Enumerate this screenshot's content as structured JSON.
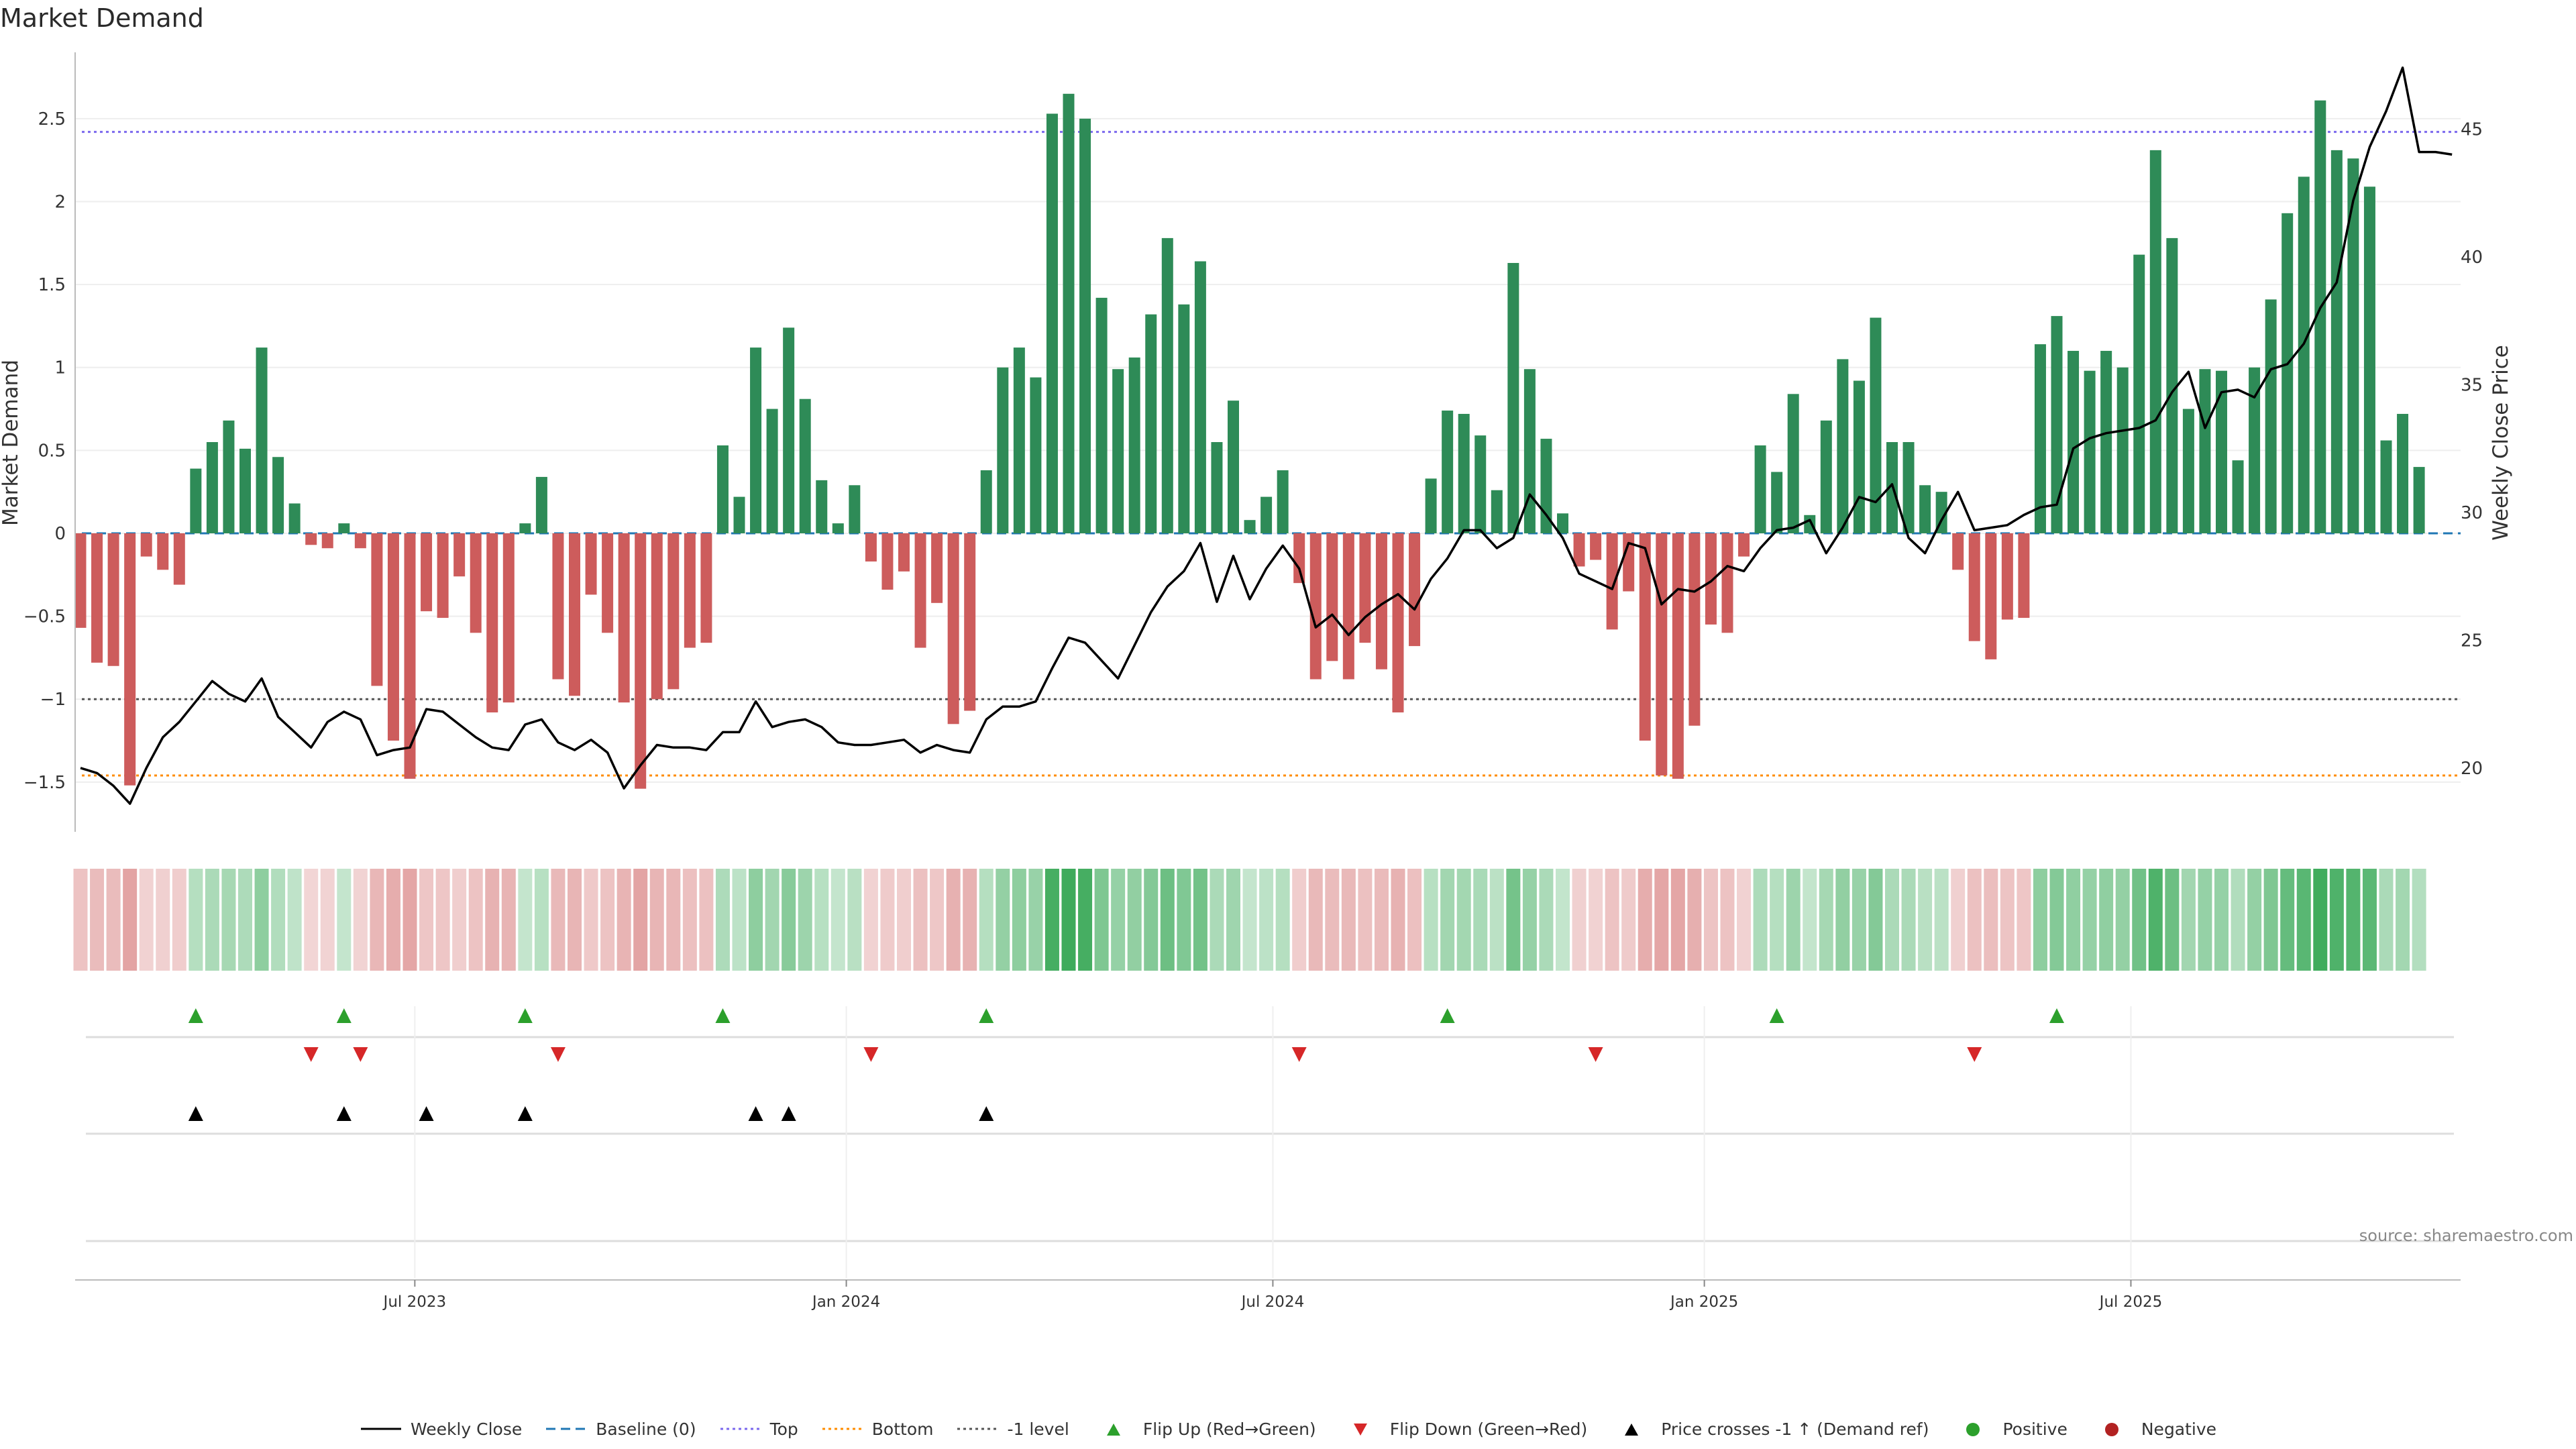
{
  "chart_data": {
    "type": "bar",
    "title": "Market Demand",
    "ylabel": "Market Demand",
    "y2label": "Weekly Close Price",
    "ylim": [
      -1.8,
      2.9
    ],
    "y2lim": [
      17.5,
      48
    ],
    "yticks": [
      "2.5",
      "2",
      "1.5",
      "1",
      "0.5",
      "0",
      "−0.5",
      "−1",
      "−1.5"
    ],
    "ytick_values": [
      2.5,
      2,
      1.5,
      1,
      0.5,
      0,
      -0.5,
      -1,
      -1.5
    ],
    "y2ticks": [
      "45",
      "40",
      "35",
      "30",
      "25",
      "20"
    ],
    "y2tick_values": [
      45,
      40,
      35,
      30,
      25,
      20
    ],
    "reference_lines": {
      "top": 2.42,
      "bottom": -1.46,
      "minus_one": -1.0,
      "baseline": 0
    },
    "xtick_labels": [
      "Jul 2023",
      "Jan 2024",
      "Jul 2024",
      "Jan 2025",
      "Jul 2025"
    ],
    "xtick_index": [
      20.3,
      46.5,
      72.4,
      98.6,
      124.5
    ],
    "demand": [
      -0.57,
      -0.78,
      -0.8,
      -1.52,
      -0.14,
      -0.22,
      -0.31,
      0.39,
      0.55,
      0.68,
      0.51,
      1.12,
      0.46,
      0.18,
      -0.07,
      -0.09,
      0.06,
      -0.09,
      -0.92,
      -1.25,
      -1.48,
      -0.47,
      -0.51,
      -0.26,
      -0.6,
      -1.08,
      -1.02,
      0.06,
      0.34,
      -0.88,
      -0.98,
      -0.37,
      -0.6,
      -1.02,
      -1.54,
      -1.0,
      -0.94,
      -0.69,
      -0.66,
      0.53,
      0.22,
      1.12,
      0.75,
      1.24,
      0.81,
      0.32,
      0.06,
      0.29,
      -0.17,
      -0.34,
      -0.23,
      -0.69,
      -0.42,
      -1.15,
      -1.07,
      0.38,
      1.0,
      1.12,
      0.94,
      2.53,
      2.65,
      2.5,
      1.42,
      0.99,
      1.06,
      1.32,
      1.78,
      1.38,
      1.64,
      0.55,
      0.8,
      0.08,
      0.22,
      0.38,
      -0.3,
      -0.88,
      -0.77,
      -0.88,
      -0.66,
      -0.82,
      -1.08,
      -0.68,
      0.33,
      0.74,
      0.72,
      0.59,
      0.26,
      1.63,
      0.99,
      0.57,
      0.12,
      -0.2,
      -0.16,
      -0.58,
      -0.35,
      -1.25,
      -1.46,
      -1.48,
      -1.16,
      -0.55,
      -0.6,
      -0.14,
      0.53,
      0.37,
      0.84,
      0.11,
      0.68,
      1.05,
      0.92,
      1.3,
      0.55,
      0.55,
      0.29,
      0.25,
      -0.22,
      -0.65,
      -0.76,
      -0.52,
      -0.51,
      1.14,
      1.31,
      1.1,
      0.98,
      1.1,
      1.0,
      1.68,
      2.31,
      1.78,
      0.75,
      0.99,
      0.98,
      0.44,
      1.0,
      1.41,
      1.93,
      2.15,
      2.61,
      2.31,
      2.26,
      2.09,
      0.56,
      0.72,
      0.4
    ],
    "weekly_close": [
      20.0,
      19.8,
      19.3,
      18.6,
      20.0,
      21.2,
      21.8,
      22.6,
      23.4,
      22.9,
      22.6,
      23.5,
      22.0,
      21.4,
      20.8,
      21.8,
      22.2,
      21.9,
      20.5,
      20.7,
      20.8,
      22.3,
      22.2,
      21.7,
      21.2,
      20.8,
      20.7,
      21.7,
      21.9,
      21.0,
      20.7,
      21.1,
      20.6,
      19.2,
      20.1,
      20.9,
      20.8,
      20.8,
      20.7,
      21.4,
      21.4,
      22.6,
      21.6,
      21.8,
      21.9,
      21.6,
      21.0,
      20.9,
      20.9,
      21.0,
      21.1,
      20.6,
      20.9,
      20.7,
      20.6,
      21.9,
      22.4,
      22.4,
      22.6,
      23.9,
      25.1,
      24.9,
      24.2,
      23.5,
      24.8,
      26.1,
      27.1,
      27.7,
      28.8,
      26.5,
      28.3,
      26.6,
      27.8,
      28.7,
      27.8,
      25.5,
      26.0,
      25.2,
      25.9,
      26.4,
      26.8,
      26.2,
      27.4,
      28.2,
      29.3,
      29.3,
      28.6,
      29.0,
      30.7,
      29.9,
      29.0,
      27.6,
      27.3,
      27.0,
      28.8,
      28.6,
      26.4,
      27.0,
      26.9,
      27.3,
      27.9,
      27.7,
      28.6,
      29.3,
      29.4,
      29.7,
      28.4,
      29.4,
      30.6,
      30.4,
      31.1,
      29.0,
      28.4,
      29.7,
      30.8,
      29.3,
      29.4,
      29.5,
      29.9,
      30.2,
      30.3,
      32.5,
      32.9,
      33.1,
      33.2,
      33.3,
      33.6,
      34.7,
      35.5,
      33.3,
      34.7,
      34.8,
      34.5,
      35.6,
      35.8,
      36.6,
      38.0,
      39.0,
      42.2,
      44.3,
      45.7,
      47.4,
      44.1,
      44.1,
      44.0
    ],
    "intensity_note": "heat strip shade follows |demand|",
    "rows": [
      "Flip Up (Red→Green)",
      "Flip Down (Green→Red)",
      "Price crosses -1 ↑ (Demand ref)",
      "Positive/Negative"
    ],
    "flip_up_index": [
      7,
      16,
      27,
      39,
      55,
      83,
      103,
      120
    ],
    "flip_down_index": [
      14,
      17,
      29,
      48,
      74,
      92,
      115
    ],
    "price_cross_index": [
      7,
      16,
      21,
      27,
      41,
      43,
      55
    ],
    "colors": {
      "positive": "#2e8b57",
      "negative": "#cd5c5c",
      "up": "#2ca02c",
      "down": "#d62728",
      "top": "#7b68ee",
      "bottom": "#ff8c00",
      "baseline": "#1f77b4",
      "minus_one": "#555555"
    }
  },
  "legend": [
    {
      "key": "weekly_close",
      "label": "Weekly Close"
    },
    {
      "key": "baseline",
      "label": "Baseline (0)"
    },
    {
      "key": "top",
      "label": "Top"
    },
    {
      "key": "bottom",
      "label": "Bottom"
    },
    {
      "key": "minus_one",
      "label": "-1 level"
    },
    {
      "key": "flip_up",
      "label": "Flip Up (Red→Green)"
    },
    {
      "key": "flip_down",
      "label": "Flip Down (Green→Red)"
    },
    {
      "key": "price_cross",
      "label": "Price crosses -1 ↑ (Demand ref)"
    },
    {
      "key": "positive",
      "label": "Positive"
    },
    {
      "key": "negative",
      "label": "Negative"
    }
  ],
  "source": "source: sharemaestro.com"
}
